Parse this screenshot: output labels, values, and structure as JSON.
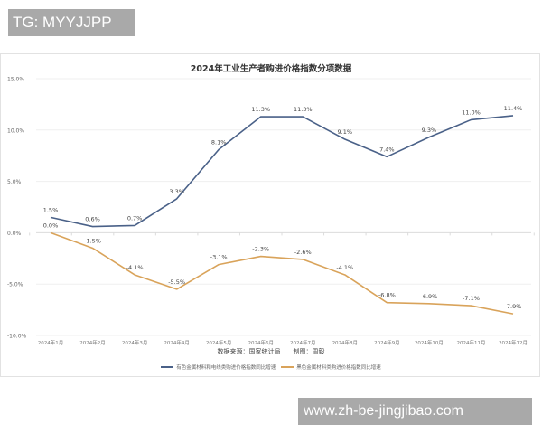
{
  "watermark_top": "TG: MYYJJPP",
  "watermark_bottom": "www.zh-be-jingjibao.com",
  "chart": {
    "title": "2024年工业生产者购进价格指数分项数据",
    "source_note": "数据来源：国家统计局　　制图：周毅",
    "legend": [
      {
        "label": "有色金属材料和电线类购进价格指数同比增速",
        "color": "#4a6188"
      },
      {
        "label": "黑色金属材料类购进价格指数同比增速",
        "color": "#d9a35a"
      }
    ]
  },
  "chart_data": {
    "type": "line",
    "title": "2024年工业生产者购进价格指数分项数据",
    "xlabel": "",
    "ylabel": "",
    "ylim": [
      -10,
      15
    ],
    "yticks": [
      "15.0%",
      "10.0%",
      "5.0%",
      "0.0%",
      "-5.0%",
      "-10.0%"
    ],
    "grid": true,
    "legend_position": "bottom",
    "categories": [
      "2024年1月",
      "2024年2月",
      "2024年3月",
      "2024年4月",
      "2024年5月",
      "2024年6月",
      "2024年7月",
      "2024年8月",
      "2024年9月",
      "2024年10月",
      "2024年11月",
      "2024年12月"
    ],
    "series": [
      {
        "name": "有色金属材料和电线类购进价格指数同比增速",
        "color": "#4a6188",
        "values": [
          1.5,
          0.6,
          0.7,
          3.3,
          8.1,
          11.3,
          11.3,
          9.1,
          7.4,
          9.3,
          11.0,
          11.4
        ]
      },
      {
        "name": "黑色金属材料类购进价格指数同比增速",
        "color": "#d9a35a",
        "values": [
          0.0,
          -1.5,
          -4.1,
          -5.5,
          -3.1,
          -2.3,
          -2.6,
          -4.1,
          -6.8,
          -6.9,
          -7.1,
          -7.9
        ]
      }
    ],
    "annotations": [
      "数据来源：国家统计局　　制图：周毅"
    ]
  }
}
